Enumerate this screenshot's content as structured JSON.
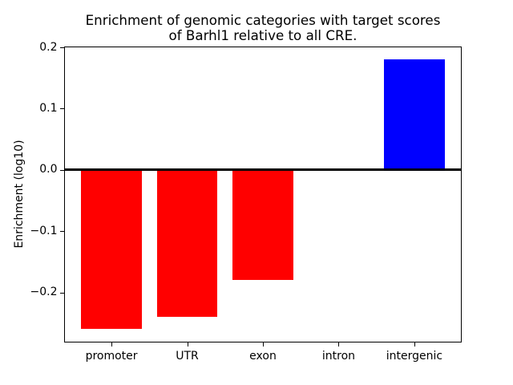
{
  "chart_data": {
    "type": "bar",
    "title": "Enrichment of genomic categories with target scores\nof Barhl1 relative to all CRE.",
    "title_lines": [
      "Enrichment of genomic categories with target scores",
      "of Barhl1 relative to all CRE."
    ],
    "xlabel": "",
    "ylabel": "Enrichment (log10)",
    "categories": [
      "promoter",
      "UTR",
      "exon",
      "intron",
      "intergenic"
    ],
    "values": [
      -0.26,
      -0.24,
      -0.18,
      0.0,
      0.18
    ],
    "bar_colors": [
      "#ff0000",
      "#ff0000",
      "#ff0000",
      "#ff0000",
      "#0000ff"
    ],
    "negative_color": "#ff0000",
    "positive_color": "#0000ff",
    "ylim": [
      -0.282,
      0.202
    ],
    "yticks": [
      0.2,
      0.1,
      0.0,
      -0.1,
      -0.2
    ],
    "ytick_labels": [
      "0.2",
      "0.1",
      "0.0",
      "−0.1",
      "−0.2"
    ],
    "bar_width_fraction": 0.8,
    "grid": false,
    "legend": null,
    "zero_line": true,
    "axis_color": "#000000",
    "text_color": "#000000",
    "background_color": "#ffffff"
  }
}
